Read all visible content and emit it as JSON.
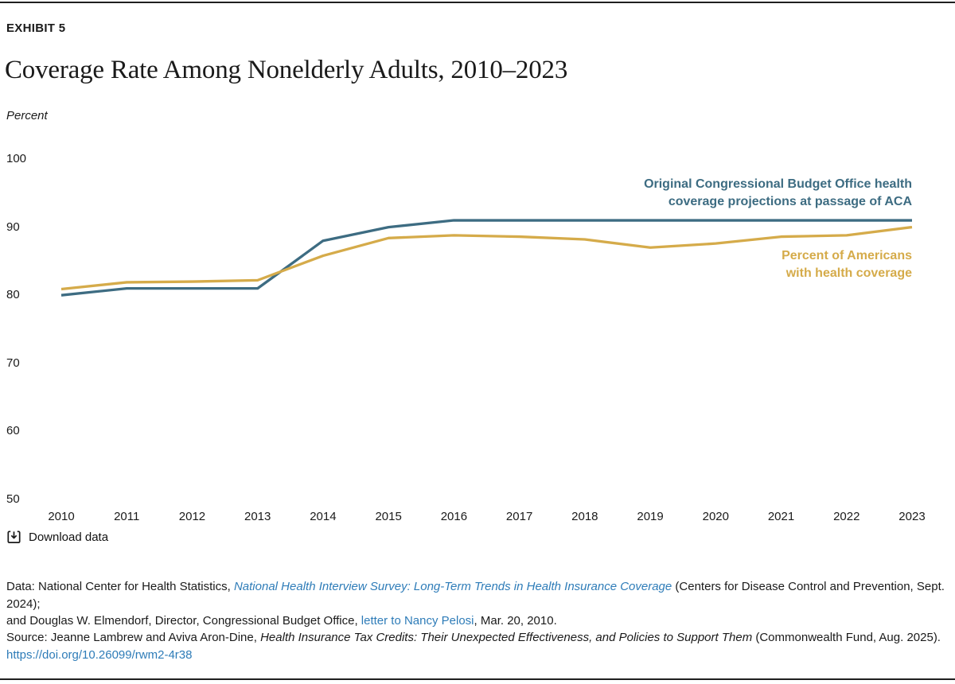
{
  "page": {
    "exhibit_label": "EXHIBIT 5",
    "title": "Coverage Rate Among Nonelderly Adults, 2010–2023",
    "axis_unit_label": "Percent"
  },
  "colors": {
    "cbo_line": "#3d6c82",
    "coverage_line": "#d5ab4a",
    "link": "#2e7cb8",
    "text": "#1a1a1a"
  },
  "chart_data": {
    "type": "line",
    "title": "Coverage Rate Among Nonelderly Adults, 2010–2023",
    "ylabel": "Percent",
    "ylim": [
      50,
      100
    ],
    "yticks": [
      50,
      60,
      70,
      80,
      90,
      100
    ],
    "x": [
      2010,
      2011,
      2012,
      2013,
      2014,
      2015,
      2016,
      2017,
      2018,
      2019,
      2020,
      2021,
      2022,
      2023
    ],
    "grid": false,
    "legend_position": "inline-annotations",
    "series": [
      {
        "name": "Original Congressional Budget Office health coverage projections at passage of ACA",
        "color": "#3d6c82",
        "values": [
          80,
          81,
          81,
          81,
          88,
          90,
          91,
          91,
          91,
          91,
          91,
          91,
          91,
          91
        ]
      },
      {
        "name": "Percent of Americans with health coverage",
        "color": "#d5ab4a",
        "values": [
          80.9,
          81.9,
          82.0,
          82.2,
          85.8,
          88.4,
          88.8,
          88.6,
          88.2,
          87.0,
          87.6,
          88.6,
          88.8,
          90.0
        ]
      }
    ]
  },
  "annotations": {
    "cbo_label": "Original Congressional Budget Office health\ncoverage projections at passage of ACA",
    "coverage_label": "Percent of Americans\nwith health coverage"
  },
  "download": {
    "label": "Download data"
  },
  "footnotes": {
    "data": {
      "prefix": "Data: National Center for Health Statistics, ",
      "link1": "National Health Interview Survey: Long-Term Trends in Health Insurance Coverage",
      "middle": " (Centers for Disease Control and Prevention, Sept. 2024);",
      "line2_prefix": "and Douglas W. Elmendorf, Director, Congressional Budget Office, ",
      "link2": "letter to Nancy Pelosi",
      "suffix": ", Mar. 20, 2010."
    },
    "source": {
      "prefix": "Source: Jeanne Lambrew and Aviva Aron-Dine, ",
      "italic": "Health Insurance Tax Credits: Their Unexpected Effectiveness, and Policies to Support Them",
      "suffix": " (Commonwealth Fund, Aug. 2025).",
      "doi": "https://doi.org/10.26099/rwm2-4r38"
    }
  }
}
